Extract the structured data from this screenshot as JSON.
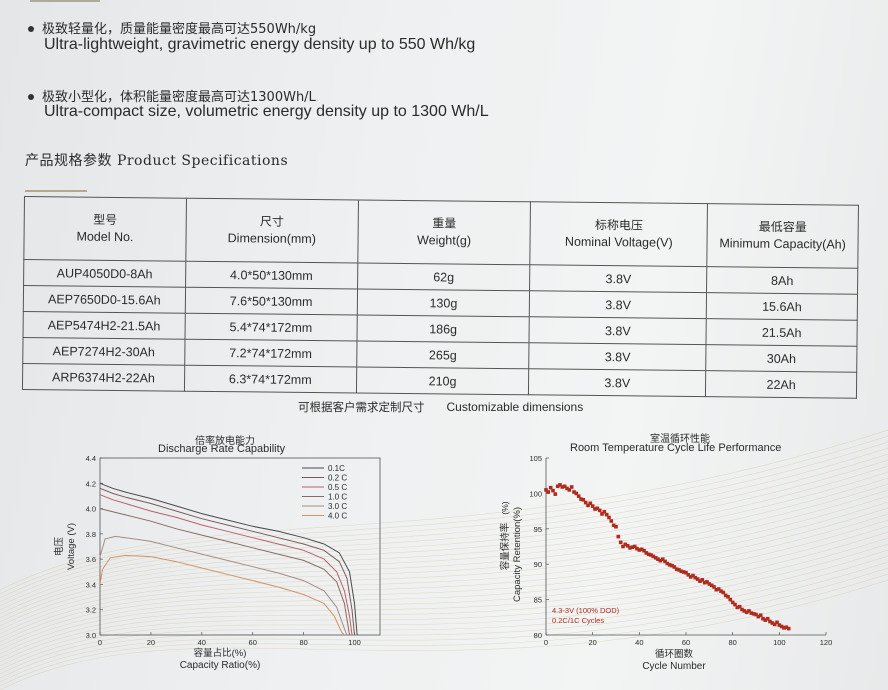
{
  "bullets": [
    {
      "zh": "极致轻量化，质量能量密度最高可达550Wh/kg",
      "en": "Ultra-lightweight, gravimetric energy density up to 550 Wh/kg"
    },
    {
      "zh": "极致小型化，体积能量密度最高可达1300Wh/L",
      "en": "Ultra-compact size, volumetric energy density up to 1300 Wh/L"
    }
  ],
  "spec_title": "产品规格参数 Product Specifications",
  "table": {
    "headers": [
      {
        "zh": "型号",
        "en": "Model No."
      },
      {
        "zh": "尺寸",
        "en": "Dimension(mm)"
      },
      {
        "zh": "重量",
        "en": "Weight(g)"
      },
      {
        "zh": "标称电压",
        "en": "Nominal Voltage(V)"
      },
      {
        "zh": "最低容量",
        "en": "Minimum Capacity(Ah)"
      }
    ],
    "rows": [
      [
        "AUP4050D0-8Ah",
        "4.0*50*130mm",
        "62g",
        "3.8V",
        "8Ah"
      ],
      [
        "AEP7650D0-15.6Ah",
        "7.6*50*130mm",
        "130g",
        "3.8V",
        "15.6Ah"
      ],
      [
        "AEP5474H2-21.5Ah",
        "5.4*74*172mm",
        "186g",
        "3.8V",
        "21.5Ah"
      ],
      [
        "AEP7274H2-30Ah",
        "7.2*74*172mm",
        "265g",
        "3.8V",
        "30Ah"
      ],
      [
        "ARP6374H2-22Ah",
        "6.3*74*172mm",
        "210g",
        "3.8V",
        "22Ah"
      ]
    ]
  },
  "note": {
    "zh": "可根据客户需求定制尺寸",
    "en": "Customizable dimensions"
  },
  "colors": {
    "axis": "#555555",
    "text": "#2b2b2b",
    "cycle": "#b02a1e"
  },
  "chart_data": [
    {
      "type": "line",
      "title": "倍率放电能力 Discharge Rate Capability",
      "title_zh": "倍率放电能力",
      "title_en": "Discharge Rate Capability",
      "xlabel_zh": "容量占比(%)",
      "xlabel": "Capacity Ratio(%)",
      "ylabel_zh": "电压",
      "ylabel": "Voltage (V)",
      "xlim": [
        0,
        110
      ],
      "ylim": [
        3.0,
        4.4
      ],
      "xticks": [
        "0",
        "20",
        "40",
        "60",
        "80",
        "100"
      ],
      "yticks": [
        "3.0",
        "3.2",
        "3.4",
        "3.6",
        "3.8",
        "4.0",
        "4.2",
        "4.4"
      ],
      "legend_position": "top-right",
      "series": [
        {
          "name": "0.1C",
          "color": "#4a4a4a",
          "x": [
            0,
            5,
            10,
            20,
            30,
            40,
            50,
            60,
            70,
            80,
            88,
            94,
            98,
            100,
            101
          ],
          "y": [
            4.2,
            4.16,
            4.13,
            4.08,
            4.02,
            3.96,
            3.91,
            3.86,
            3.82,
            3.77,
            3.72,
            3.65,
            3.5,
            3.25,
            3.0
          ]
        },
        {
          "name": "0.2 C",
          "color": "#7d5a5a",
          "x": [
            0,
            5,
            10,
            20,
            30,
            40,
            50,
            60,
            70,
            80,
            88,
            94,
            97,
            99,
            100
          ],
          "y": [
            4.16,
            4.12,
            4.09,
            4.04,
            3.98,
            3.92,
            3.87,
            3.82,
            3.77,
            3.72,
            3.67,
            3.58,
            3.45,
            3.2,
            3.0
          ]
        },
        {
          "name": "0.5 C",
          "color": "#b7636e",
          "x": [
            0,
            5,
            10,
            20,
            30,
            40,
            50,
            60,
            70,
            80,
            88,
            93,
            96,
            98,
            99
          ],
          "y": [
            4.11,
            4.07,
            4.04,
            3.98,
            3.93,
            3.87,
            3.82,
            3.77,
            3.72,
            3.67,
            3.6,
            3.5,
            3.35,
            3.15,
            3.0
          ]
        },
        {
          "name": "1.0 C",
          "color": "#8a6c62",
          "x": [
            0,
            4,
            10,
            20,
            30,
            40,
            50,
            60,
            70,
            80,
            88,
            93,
            96,
            98
          ],
          "y": [
            4.0,
            3.98,
            3.95,
            3.9,
            3.84,
            3.79,
            3.74,
            3.69,
            3.64,
            3.59,
            3.52,
            3.42,
            3.25,
            3.0
          ]
        },
        {
          "name": "3.0 C",
          "color": "#a58c84",
          "x": [
            0,
            2,
            6,
            10,
            20,
            30,
            40,
            50,
            60,
            70,
            80,
            88,
            93,
            96,
            97
          ],
          "y": [
            3.62,
            3.76,
            3.78,
            3.77,
            3.74,
            3.69,
            3.64,
            3.59,
            3.54,
            3.49,
            3.43,
            3.35,
            3.22,
            3.05,
            3.0
          ]
        },
        {
          "name": "4.0 C",
          "color": "#d0936a",
          "x": [
            0,
            1,
            4,
            10,
            20,
            30,
            40,
            50,
            60,
            70,
            80,
            88,
            92,
            95,
            96
          ],
          "y": [
            3.4,
            3.52,
            3.61,
            3.63,
            3.62,
            3.58,
            3.53,
            3.48,
            3.43,
            3.38,
            3.32,
            3.25,
            3.15,
            3.02,
            3.0
          ]
        }
      ]
    },
    {
      "type": "scatter",
      "title": "室温循环性能 Room Temperature Cycle Life Performance",
      "title_zh": "室温循环性能",
      "title_en": "Room Temperature Cycle Life Performance",
      "xlabel_zh": "循环圈数",
      "xlabel": "Cycle Number",
      "ylabel_zh": "容量保持率",
      "ylabel": "Capacity Retention(%)",
      "ylabel_suffix": "(%)",
      "xlim": [
        0,
        120
      ],
      "ylim": [
        80,
        105
      ],
      "xticks": [
        "0",
        "20",
        "40",
        "60",
        "80",
        "100",
        "120"
      ],
      "yticks": [
        "80",
        "85",
        "90",
        "95",
        "100",
        "105"
      ],
      "annotations": [
        "4.3-3V (100% DOD)",
        "0.2C/1C Cycles"
      ],
      "series": [
        {
          "name": "",
          "color": "#b02a1e",
          "x": [
            0,
            1,
            2,
            3,
            4,
            5,
            6,
            7,
            8,
            9,
            10,
            11,
            12,
            13,
            14,
            15,
            16,
            17,
            18,
            19,
            20,
            21,
            22,
            23,
            24,
            25,
            26,
            27,
            28,
            29,
            30,
            31,
            32,
            33,
            34,
            35,
            36,
            37,
            38,
            39,
            40,
            41,
            42,
            43,
            44,
            45,
            46,
            47,
            48,
            49,
            50,
            51,
            52,
            53,
            54,
            55,
            56,
            57,
            58,
            59,
            60,
            61,
            62,
            63,
            64,
            65,
            66,
            67,
            68,
            69,
            70,
            71,
            72,
            73,
            74,
            75,
            76,
            77,
            78,
            79,
            80,
            81,
            82,
            83,
            84,
            85,
            86,
            87,
            88,
            89,
            90,
            91,
            92,
            93,
            94,
            95,
            96,
            97,
            98,
            99,
            100,
            101,
            102,
            103,
            104
          ],
          "y": [
            100.5,
            100.2,
            100.8,
            100.4,
            99.9,
            101.0,
            101.2,
            100.9,
            101.0,
            100.7,
            100.5,
            100.9,
            100.2,
            100.0,
            99.6,
            99.2,
            99.1,
            98.7,
            98.3,
            98.6,
            98.2,
            97.8,
            97.9,
            97.6,
            97.1,
            97.4,
            97.0,
            96.6,
            96.1,
            95.5,
            95.3,
            93.9,
            93.1,
            92.5,
            92.8,
            92.6,
            92.3,
            92.4,
            92.5,
            92.2,
            92.0,
            92.1,
            91.9,
            91.6,
            91.4,
            91.3,
            91.1,
            90.9,
            90.7,
            90.5,
            90.7,
            90.4,
            90.1,
            89.9,
            89.8,
            89.6,
            89.3,
            89.2,
            89.0,
            88.9,
            88.8,
            88.5,
            88.2,
            88.4,
            88.1,
            87.9,
            87.6,
            87.8,
            87.4,
            87.5,
            87.2,
            87.0,
            86.8,
            86.4,
            86.5,
            86.2,
            86.0,
            85.6,
            85.4,
            85.0,
            84.6,
            84.3,
            83.9,
            84.0,
            83.6,
            83.4,
            83.2,
            83.4,
            83.1,
            83.0,
            82.9,
            82.6,
            82.8,
            82.3,
            82.1,
            82.3,
            81.9,
            81.7,
            81.5,
            81.8,
            81.4,
            81.2,
            81.0,
            81.1,
            80.9
          ]
        }
      ]
    }
  ]
}
